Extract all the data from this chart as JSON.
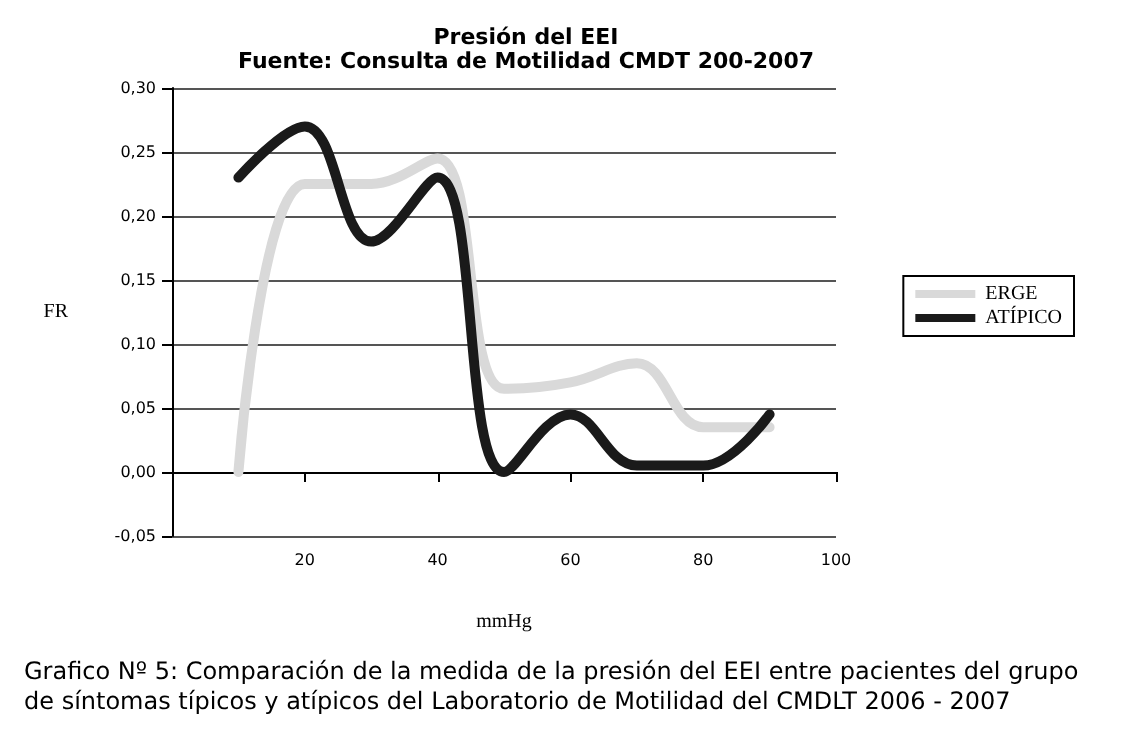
{
  "chart_data": {
    "type": "line",
    "title": "Presión del EEI",
    "subtitle": "Fuente: Consulta de Motilidad CMDT 200-2007",
    "xlabel": "mmHg",
    "ylabel": "FR",
    "x": [
      10,
      20,
      30,
      40,
      50,
      60,
      70,
      80,
      90
    ],
    "series": [
      {
        "name": "ERGE",
        "color": "#d9d9d9",
        "values": [
          0.0,
          0.225,
          0.225,
          0.245,
          0.065,
          0.07,
          0.085,
          0.035,
          0.035
        ]
      },
      {
        "name": "ATÍPICO",
        "color": "#1a1a1a",
        "values": [
          0.23,
          0.27,
          0.18,
          0.23,
          0.0,
          0.045,
          0.005,
          0.005,
          0.045
        ]
      }
    ],
    "xlim": [
      0,
      100
    ],
    "xticks": [
      20,
      40,
      60,
      80,
      100
    ],
    "ylim": [
      -0.05,
      0.3
    ],
    "yticks": [
      {
        "value": -0.05,
        "label": "-0,05"
      },
      {
        "value": 0,
        "label": "0,00"
      },
      {
        "value": 0.05,
        "label": "0,05"
      },
      {
        "value": 0.1,
        "label": "0,10"
      },
      {
        "value": 0.15,
        "label": "0,15"
      },
      {
        "value": 0.2,
        "label": "0,20"
      },
      {
        "value": 0.25,
        "label": "0,25"
      },
      {
        "value": 0.3,
        "label": "0,30"
      }
    ],
    "grid": "y",
    "legend": "right",
    "marker": "none",
    "line_style": "solid",
    "annotations": [
      "Grafico Nº 5: Comparación de la medida de la presión del EEI entre pacientes del grupo de síntomas típicos y atípicos del Laboratorio de Motilidad del CMDLT 2006 - 2007"
    ]
  }
}
